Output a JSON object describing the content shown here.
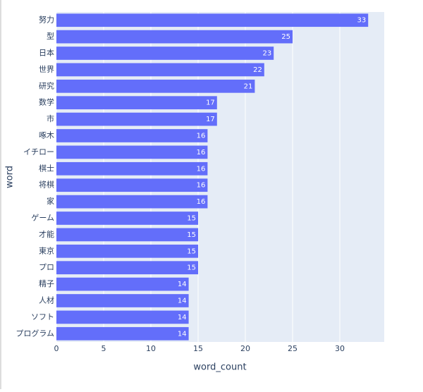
{
  "chart_data": {
    "type": "barh",
    "x_label": "word_count",
    "y_label": "word",
    "categories": [
      "努力",
      "型",
      "日本",
      "世界",
      "研究",
      "数学",
      "市",
      "啄木",
      "イチロー",
      "棋士",
      "将棋",
      "家",
      "ゲーム",
      "才能",
      "東京",
      "プロ",
      "精子",
      "人材",
      "ソフト",
      "プログラム"
    ],
    "values": [
      33,
      25,
      23,
      22,
      21,
      17,
      17,
      16,
      16,
      16,
      16,
      16,
      15,
      15,
      15,
      15,
      14,
      14,
      14,
      14
    ],
    "color": "#636efa",
    "xlim": [
      0,
      34.7
    ],
    "xticks": [
      0,
      5,
      10,
      15,
      20,
      25,
      30
    ],
    "grid": true
  }
}
